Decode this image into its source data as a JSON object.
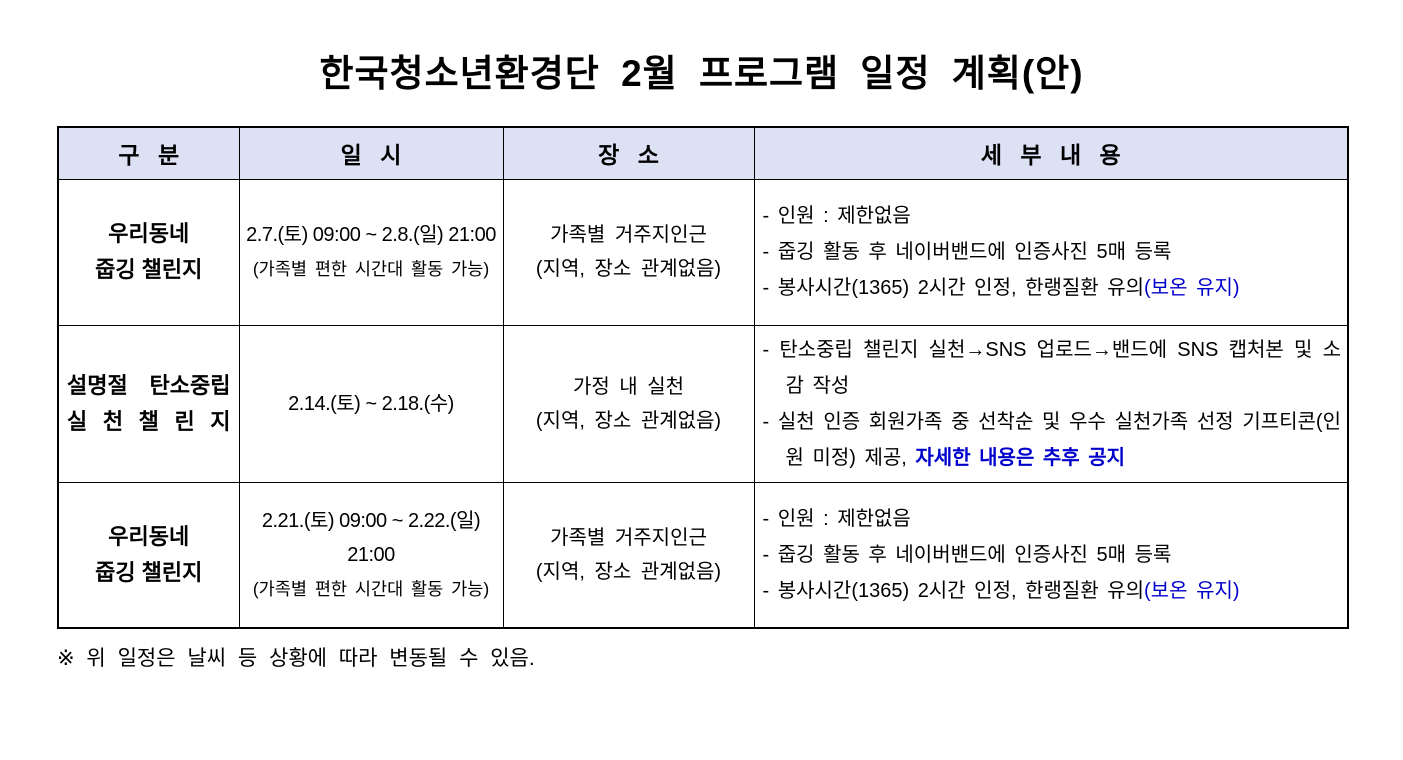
{
  "title": "한국청소년환경단 2월 프로그램 일정 계획(안)",
  "colors": {
    "header_bg": "#dce2f3",
    "accent_blue": "#0000cc",
    "border": "#000000",
    "text": "#000000"
  },
  "table": {
    "headers": [
      "구 분",
      "일 시",
      "장 소",
      "세 부 내 용"
    ],
    "rows": [
      {
        "category_lines": [
          "우리동네",
          "줍깅 챌린지"
        ],
        "category_justify": false,
        "datetime": {
          "main": "2.7.(토) 09:00 ~ 2.8.(일) 21:00",
          "sub": "(가족별 편한 시간대 활동 가능)"
        },
        "location_lines": [
          "가족별 거주지인근",
          "(지역, 장소 관계없음)"
        ],
        "details": [
          [
            {
              "t": "인원 : 제한없음"
            }
          ],
          [
            {
              "t": "줍깅 활동 후 네이버밴드에 인증사진 5매 등록"
            }
          ],
          [
            {
              "t": "봉사시간(1365) 2시간 인정, 한랭질환 유의"
            },
            {
              "t": "(보온 유지)",
              "style": "blue"
            }
          ]
        ]
      },
      {
        "category_lines": [
          "설명절 탄소중립",
          "실 천 챌 린 지"
        ],
        "category_justify": true,
        "datetime": {
          "main": "2.14.(토) ~ 2.18.(수)",
          "sub": ""
        },
        "location_lines": [
          "가정 내 실천",
          "(지역, 장소 관계없음)"
        ],
        "details": [
          [
            {
              "t": "탄소중립 챌린지 실천→SNS 업로드→밴드에 SNS 캡처본 및 소감 작성"
            }
          ],
          [
            {
              "t": "실천 인증 회원가족 중 선착순 및 우수 실천가족 선정 기프티콘(인원 미정) 제공, "
            },
            {
              "t": "자세한 내용은 추후 공지",
              "style": "blue-bold"
            }
          ]
        ]
      },
      {
        "category_lines": [
          "우리동네",
          "줍깅 챌린지"
        ],
        "category_justify": false,
        "datetime": {
          "main": "2.21.(토) 09:00 ~ 2.22.(일) 21:00",
          "sub": "(가족별 편한 시간대 활동 가능)"
        },
        "location_lines": [
          "가족별 거주지인근",
          "(지역, 장소 관계없음)"
        ],
        "details": [
          [
            {
              "t": "인원 : 제한없음"
            }
          ],
          [
            {
              "t": "줍깅 활동 후 네이버밴드에 인증사진 5매 등록"
            }
          ],
          [
            {
              "t": "봉사시간(1365) 2시간 인정, 한랭질환 유의"
            },
            {
              "t": "(보온 유지)",
              "style": "blue"
            }
          ]
        ]
      }
    ]
  },
  "footnote": "※ 위 일정은 날씨 등 상황에 따라 변동될 수 있음."
}
